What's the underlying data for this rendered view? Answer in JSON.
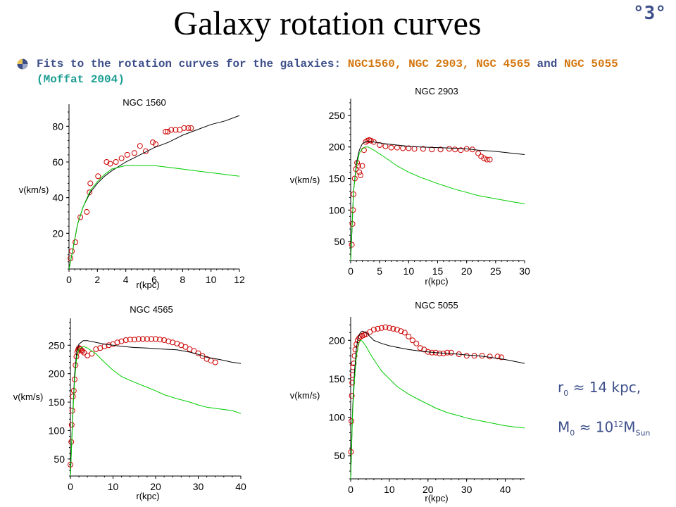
{
  "title": "Galaxy rotation curves",
  "slide_number": "°3°",
  "bullet": {
    "prefix": "Fits to the rotation curves for the galaxies:",
    "galaxies": "NGC1560, NGC 2903, NGC 4565",
    "join": "and",
    "last_galaxy": "NGC 5055",
    "citation": "(Moffat 2004)"
  },
  "formula": {
    "r_symbol": "r",
    "r_sub": "0",
    "approx": "≈",
    "r_value": "14 kpc,",
    "m_symbol": "M",
    "m_sub": "0",
    "m_base": "10",
    "m_exp": "12",
    "m_unit": "M",
    "m_unit_sub": "Sun"
  },
  "colors": {
    "text": "#3d4f8a",
    "orange": "#d3760e",
    "teal": "#1e9e92",
    "obs": "#cc0000",
    "fit": "#000000",
    "newton": "#00cc00"
  },
  "chart_data": [
    {
      "type": "scatter",
      "title": "NGC 1560",
      "xlabel": "r(kpc)",
      "ylabel": "v(km/s)",
      "xlim": [
        0,
        12
      ],
      "ylim": [
        0,
        90
      ],
      "xticks": [
        0,
        2,
        4,
        6,
        8,
        10,
        12
      ],
      "yticks": [
        20,
        40,
        60,
        80
      ],
      "series": [
        {
          "kind": "points",
          "x": [
            0.1,
            0.2,
            0.45,
            0.8,
            1.25,
            1.45,
            1.5,
            2.05,
            2.65,
            2.9,
            3.3,
            3.7,
            4.1,
            4.6,
            5.0,
            5.4,
            5.9,
            6.1,
            6.8,
            6.95,
            7.2,
            7.5,
            7.8,
            8.1,
            8.4,
            8.6
          ],
          "y": [
            6,
            10,
            15,
            29,
            32,
            43,
            48,
            52,
            60,
            59,
            60,
            62,
            64,
            65,
            69,
            66,
            71,
            70,
            77,
            77,
            78,
            78,
            78,
            79,
            79,
            79
          ]
        },
        {
          "kind": "line",
          "color": "#000000",
          "x": [
            0,
            0.3,
            0.6,
            1,
            1.5,
            2,
            2.5,
            3,
            4,
            5,
            6,
            7,
            8,
            9,
            10,
            11,
            12
          ],
          "y": [
            0,
            12,
            25,
            35,
            43,
            48,
            52,
            55,
            60,
            64,
            68,
            71,
            75,
            78,
            81,
            83,
            86
          ]
        },
        {
          "kind": "line",
          "color": "#00cc00",
          "x": [
            0,
            0.3,
            0.6,
            1,
            1.5,
            2,
            2.5,
            3,
            4,
            5,
            6,
            7,
            8,
            9,
            10,
            11,
            12
          ],
          "y": [
            0,
            12,
            25,
            35,
            44,
            49,
            53,
            56,
            58,
            58,
            58,
            57,
            56,
            55,
            54,
            53,
            52
          ]
        }
      ]
    },
    {
      "type": "scatter",
      "title": "NGC 2903",
      "xlabel": "r(kpc)",
      "ylabel": "v(km/s)",
      "xlim": [
        0,
        30
      ],
      "ylim": [
        20,
        270
      ],
      "xticks": [
        0,
        5,
        10,
        15,
        20,
        25,
        30
      ],
      "yticks": [
        50,
        100,
        150,
        200,
        250
      ],
      "series": [
        {
          "kind": "points",
          "x": [
            0.2,
            0.3,
            0.4,
            0.5,
            0.7,
            0.9,
            1.1,
            1.3,
            1.5,
            1.7,
            2.0,
            2.3,
            2.6,
            2.9,
            3.2,
            3.5,
            4,
            5,
            6,
            7,
            8,
            9,
            10,
            11,
            12.5,
            14,
            15.5,
            17,
            18,
            19,
            20,
            21,
            22,
            22.5,
            23,
            23.5,
            24
          ],
          "y": [
            45,
            78,
            100,
            125,
            150,
            165,
            175,
            170,
            160,
            155,
            170,
            195,
            208,
            210,
            211,
            210,
            208,
            203,
            201,
            199,
            199,
            198,
            198,
            197,
            197,
            196,
            196,
            197,
            196,
            195,
            197,
            196,
            190,
            185,
            182,
            180,
            180
          ]
        },
        {
          "kind": "line",
          "color": "#000000",
          "x": [
            0,
            0.5,
            1,
            1.5,
            2,
            2.5,
            3,
            4,
            6,
            8,
            10,
            12,
            15,
            18,
            20,
            22,
            25,
            28,
            30
          ],
          "y": [
            20,
            130,
            175,
            195,
            205,
            208,
            209,
            208,
            205,
            203,
            201,
            200,
            199,
            198,
            197,
            195,
            193,
            190,
            188
          ]
        },
        {
          "kind": "line",
          "color": "#00cc00",
          "x": [
            0,
            0.5,
            1,
            1.5,
            2,
            2.5,
            3,
            4,
            6,
            8,
            10,
            12,
            15,
            18,
            20,
            22,
            25,
            28,
            30
          ],
          "y": [
            20,
            130,
            170,
            190,
            197,
            200,
            200,
            195,
            183,
            170,
            160,
            152,
            142,
            133,
            128,
            123,
            118,
            113,
            110
          ]
        }
      ]
    },
    {
      "type": "scatter",
      "title": "NGC 4565",
      "xlabel": "r(kpc)",
      "ylabel": "v(km/s)",
      "xlim": [
        0,
        40
      ],
      "ylim": [
        20,
        290
      ],
      "xticks": [
        0,
        10,
        20,
        30,
        40
      ],
      "yticks": [
        50,
        100,
        150,
        200,
        250
      ],
      "series": [
        {
          "kind": "points",
          "x": [
            0,
            0.2,
            0.3,
            0.45,
            0.6,
            0.8,
            1.0,
            1.2,
            1.4,
            1.6,
            1.8,
            2.0,
            2.2,
            2.4,
            2.6,
            2.8,
            3.2,
            4,
            5,
            6,
            7,
            8,
            9,
            10,
            11,
            12,
            13,
            14,
            15,
            16,
            17,
            18,
            19,
            20,
            21,
            22,
            23,
            24,
            25,
            26,
            27,
            28,
            29,
            30,
            31,
            32,
            33,
            34
          ],
          "y": [
            40,
            80,
            110,
            135,
            160,
            170,
            190,
            215,
            230,
            238,
            242,
            245,
            244,
            243,
            241,
            240,
            237,
            232,
            235,
            243,
            245,
            248,
            250,
            252,
            255,
            257,
            259,
            260,
            260,
            261,
            261,
            261,
            261,
            261,
            260,
            259,
            257,
            255,
            253,
            250,
            247,
            243,
            240,
            236,
            231,
            226,
            223,
            220
          ]
        },
        {
          "kind": "line",
          "color": "#000000",
          "x": [
            0,
            0.5,
            1,
            1.5,
            2,
            3,
            4,
            6,
            8,
            10,
            12,
            15,
            18,
            20,
            22,
            25,
            28,
            30,
            32,
            35,
            38,
            40
          ],
          "y": [
            20,
            120,
            200,
            240,
            252,
            258,
            258,
            255,
            252,
            250,
            248,
            246,
            245,
            244,
            243,
            242,
            238,
            234,
            229,
            225,
            220,
            218
          ]
        },
        {
          "kind": "line",
          "color": "#00cc00",
          "x": [
            0,
            0.5,
            1,
            1.5,
            2,
            3,
            4,
            6,
            8,
            10,
            12,
            15,
            18,
            20,
            22,
            25,
            28,
            30,
            32,
            35,
            38,
            40
          ],
          "y": [
            20,
            115,
            190,
            230,
            243,
            248,
            245,
            235,
            220,
            206,
            195,
            185,
            176,
            170,
            163,
            156,
            150,
            145,
            141,
            138,
            135,
            130
          ]
        }
      ]
    },
    {
      "type": "scatter",
      "title": "NGC 5055",
      "xlabel": "r(kpc)",
      "ylabel": "v(km/s)",
      "xlim": [
        0,
        45
      ],
      "ylim": [
        20,
        225
      ],
      "xticks": [
        0,
        10,
        20,
        30,
        40
      ],
      "yticks": [
        50,
        100,
        150,
        200
      ],
      "series": [
        {
          "kind": "points",
          "x": [
            0.1,
            0.2,
            0.3,
            0.4,
            0.5,
            0.6,
            0.8,
            1.0,
            1.2,
            1.5,
            1.8,
            2.2,
            2.6,
            3.0,
            3.5,
            4,
            5,
            6,
            7,
            8,
            9,
            10,
            11,
            12,
            13,
            14,
            15,
            16,
            17,
            18,
            19,
            20,
            21,
            22,
            23,
            24,
            25,
            26,
            28,
            30,
            32,
            34,
            36,
            38,
            39
          ],
          "y": [
            55,
            95,
            128,
            145,
            155,
            165,
            170,
            180,
            188,
            195,
            200,
            203,
            205,
            206,
            207,
            208,
            211,
            214,
            215,
            216,
            217,
            216,
            215,
            214,
            212,
            210,
            205,
            200,
            196,
            190,
            188,
            185,
            184,
            184,
            183,
            183,
            184,
            184,
            182,
            180,
            180,
            180,
            179,
            179,
            178
          ]
        },
        {
          "kind": "line",
          "color": "#000000",
          "x": [
            0,
            0.5,
            1,
            1.5,
            2,
            2.5,
            3,
            4,
            5,
            6,
            8,
            10,
            12,
            15,
            18,
            20,
            22,
            25,
            28,
            30,
            33,
            36,
            40,
            43,
            45
          ],
          "y": [
            20,
            110,
            160,
            190,
            205,
            210,
            212,
            210,
            205,
            200,
            196,
            193,
            191,
            188,
            186,
            185,
            184,
            183,
            182,
            181,
            180,
            178,
            175,
            172,
            170
          ]
        },
        {
          "kind": "line",
          "color": "#00cc00",
          "x": [
            0,
            0.5,
            1,
            1.5,
            2,
            2.5,
            3,
            4,
            5,
            6,
            8,
            10,
            12,
            15,
            18,
            20,
            22,
            25,
            28,
            30,
            33,
            36,
            40,
            43,
            45
          ],
          "y": [
            20,
            105,
            150,
            180,
            195,
            200,
            199,
            192,
            183,
            175,
            160,
            150,
            140,
            130,
            122,
            117,
            112,
            106,
            102,
            99,
            96,
            93,
            89,
            87,
            86
          ]
        }
      ]
    }
  ]
}
